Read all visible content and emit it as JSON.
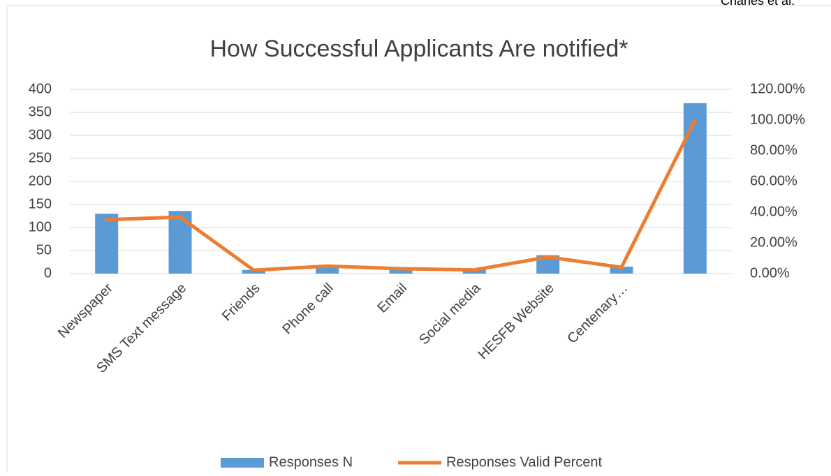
{
  "header": "Chanes et al.",
  "chart_data": {
    "type": "bar",
    "title": "How Successful Applicants Are notified*",
    "categories": [
      "Newspaper",
      "SMS Text message",
      "Friends",
      "Phone call",
      "Email",
      "Social media",
      "HESFB Website",
      "Centenary…",
      null
    ],
    "series": [
      {
        "name": "Responses N",
        "type": "bar",
        "color": "#5b9bd5",
        "values": [
          130,
          136,
          8,
          18,
          12,
          9,
          40,
          15,
          370
        ]
      },
      {
        "name": "Responses Valid Percent",
        "type": "line",
        "axis": "y2",
        "color": "#ed7d31",
        "values": [
          35.1,
          36.8,
          2.2,
          4.9,
          3.2,
          2.4,
          10.8,
          4.1,
          100
        ]
      }
    ],
    "ylim": [
      0,
      400
    ],
    "yticks": [
      0,
      50,
      100,
      150,
      200,
      250,
      300,
      350,
      400
    ],
    "y2lim": [
      0,
      120
    ],
    "y2ticks": [
      {
        "value": 0,
        "label": "0.00%"
      },
      {
        "value": 20,
        "label": "20.00%"
      },
      {
        "value": 40,
        "label": "40.00%"
      },
      {
        "value": 60,
        "label": "60.00%"
      },
      {
        "value": 80,
        "label": "80.00%"
      },
      {
        "value": 100,
        "label": "100.00%"
      },
      {
        "value": 120,
        "label": "120.00%"
      }
    ],
    "grid": true,
    "legend": "bottom"
  }
}
